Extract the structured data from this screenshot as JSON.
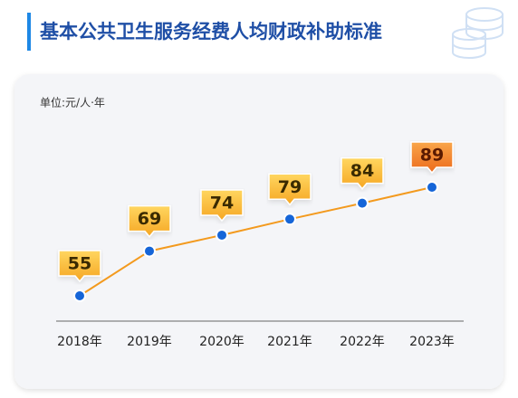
{
  "chart_data": {
    "type": "line",
    "title": "基本公共卫生服务经费人均财政补助标准",
    "unit_label": "单位:元/人·年",
    "categories": [
      "2018年",
      "2019年",
      "2020年",
      "2021年",
      "2022年",
      "2023年"
    ],
    "values": [
      55,
      69,
      74,
      79,
      84,
      89
    ],
    "color": "#f39a1e",
    "marker_color": "#1565d8"
  }
}
